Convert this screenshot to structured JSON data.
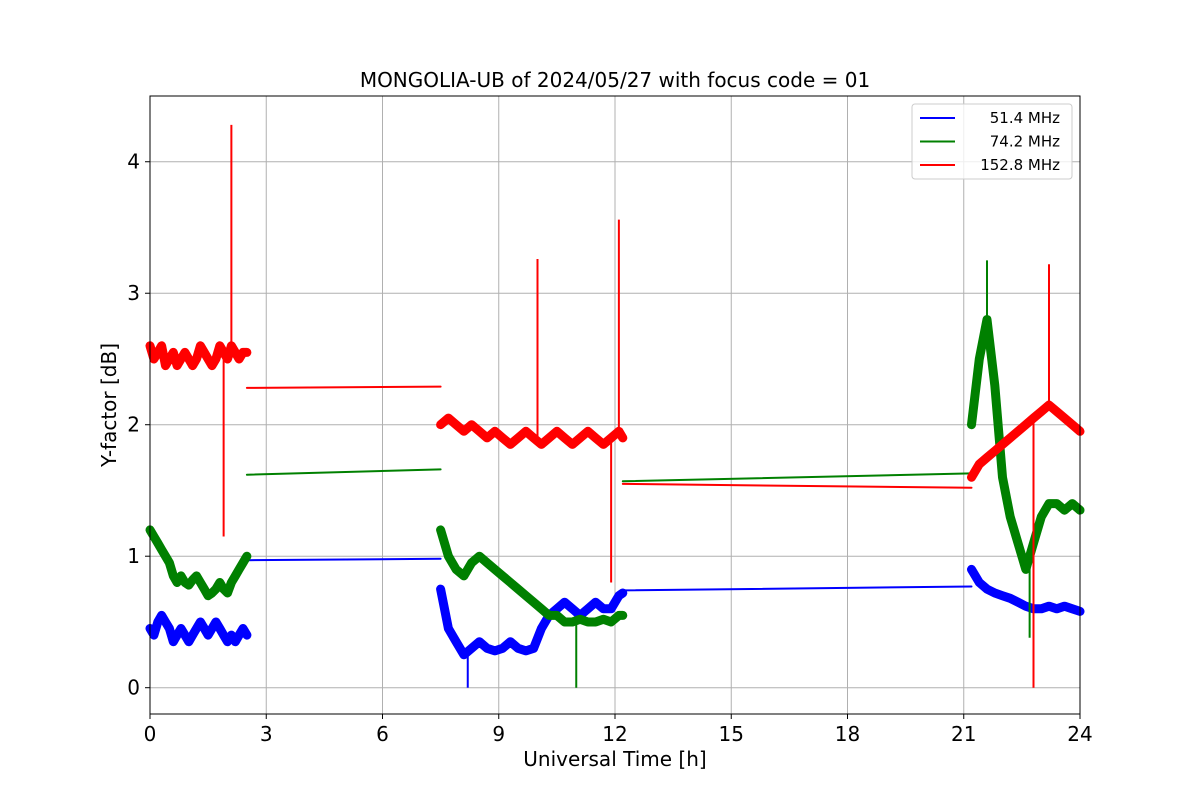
{
  "chart_data": {
    "type": "line",
    "title": "MONGOLIA-UB of 2024/05/27 with focus code = 01",
    "xlabel": "Universal Time [h]",
    "ylabel": "Y-factor [dB]",
    "xlim": [
      0,
      24
    ],
    "ylim": [
      -0.2,
      4.5
    ],
    "xticks": [
      0,
      3,
      6,
      9,
      12,
      15,
      18,
      21,
      24
    ],
    "yticks": [
      0,
      1,
      2,
      3,
      4
    ],
    "grid": true,
    "legend_position": "top-right",
    "series": [
      {
        "name": "51.4 MHz",
        "color": "#0000ff",
        "segments": [
          {
            "x": [
              0.0,
              0.1,
              0.2,
              0.3,
              0.4,
              0.5,
              0.6,
              0.7,
              0.8,
              0.9,
              1.0,
              1.1,
              1.2,
              1.3,
              1.4,
              1.5,
              1.6,
              1.7,
              1.8,
              1.9,
              2.0,
              2.1,
              2.2,
              2.3,
              2.4,
              2.5
            ],
            "y": [
              0.45,
              0.4,
              0.5,
              0.55,
              0.5,
              0.45,
              0.35,
              0.4,
              0.45,
              0.4,
              0.35,
              0.4,
              0.45,
              0.5,
              0.45,
              0.4,
              0.45,
              0.5,
              0.45,
              0.4,
              0.35,
              0.4,
              0.35,
              0.4,
              0.45,
              0.4
            ]
          },
          {
            "x": [
              2.5,
              7.5
            ],
            "y": [
              0.97,
              0.98
            ]
          },
          {
            "x": [
              7.5,
              7.7,
              7.9,
              8.1,
              8.3,
              8.5,
              8.7,
              8.9,
              9.1,
              9.3,
              9.5,
              9.7,
              9.9,
              10.1,
              10.3,
              10.5,
              10.7,
              10.9,
              11.1,
              11.3,
              11.5,
              11.7,
              11.9,
              12.1,
              12.2
            ],
            "y": [
              0.75,
              0.45,
              0.35,
              0.25,
              0.3,
              0.35,
              0.3,
              0.28,
              0.3,
              0.35,
              0.3,
              0.28,
              0.3,
              0.45,
              0.55,
              0.6,
              0.65,
              0.6,
              0.55,
              0.6,
              0.65,
              0.6,
              0.6,
              0.7,
              0.72
            ]
          },
          {
            "x": [
              12.2,
              21.2
            ],
            "y": [
              0.74,
              0.77
            ]
          },
          {
            "x": [
              21.2,
              21.4,
              21.6,
              21.8,
              22.0,
              22.2,
              22.4,
              22.6,
              22.8,
              23.0,
              23.2,
              23.4,
              23.6,
              23.8,
              24.0
            ],
            "y": [
              0.9,
              0.8,
              0.75,
              0.72,
              0.7,
              0.68,
              0.65,
              0.62,
              0.6,
              0.6,
              0.62,
              0.6,
              0.62,
              0.6,
              0.58
            ]
          }
        ]
      },
      {
        "name": "74.2 MHz",
        "color": "#008000",
        "segments": [
          {
            "x": [
              0.0,
              0.1,
              0.2,
              0.3,
              0.4,
              0.5,
              0.6,
              0.7,
              0.8,
              0.9,
              1.0,
              1.1,
              1.2,
              1.3,
              1.4,
              1.5,
              1.6,
              1.7,
              1.8,
              1.9,
              2.0,
              2.1,
              2.2,
              2.3,
              2.4,
              2.5
            ],
            "y": [
              1.2,
              1.15,
              1.1,
              1.05,
              1.0,
              0.95,
              0.85,
              0.8,
              0.85,
              0.8,
              0.78,
              0.82,
              0.85,
              0.8,
              0.75,
              0.7,
              0.72,
              0.75,
              0.8,
              0.75,
              0.72,
              0.8,
              0.85,
              0.9,
              0.95,
              1.0
            ]
          },
          {
            "x": [
              2.5,
              7.5
            ],
            "y": [
              1.62,
              1.66
            ]
          },
          {
            "x": [
              7.5,
              7.7,
              7.9,
              8.1,
              8.3,
              8.5,
              8.7,
              8.9,
              9.1,
              9.3,
              9.5,
              9.7,
              9.9,
              10.1,
              10.3,
              10.5,
              10.7,
              10.9,
              11.1,
              11.3,
              11.5,
              11.7,
              11.9,
              12.1,
              12.2
            ],
            "y": [
              1.2,
              1.0,
              0.9,
              0.85,
              0.95,
              1.0,
              0.95,
              0.9,
              0.85,
              0.8,
              0.75,
              0.7,
              0.65,
              0.6,
              0.55,
              0.55,
              0.5,
              0.5,
              0.52,
              0.5,
              0.5,
              0.52,
              0.5,
              0.55,
              0.55
            ]
          },
          {
            "x": [
              12.2,
              21.2
            ],
            "y": [
              1.57,
              1.63
            ]
          },
          {
            "x": [
              21.2,
              21.4,
              21.6,
              21.8,
              22.0,
              22.2,
              22.4,
              22.6,
              22.8,
              23.0,
              23.2,
              23.4,
              23.6,
              23.8,
              24.0
            ],
            "y": [
              2.0,
              2.5,
              2.8,
              2.3,
              1.6,
              1.3,
              1.1,
              0.9,
              1.1,
              1.3,
              1.4,
              1.4,
              1.35,
              1.4,
              1.35
            ]
          }
        ]
      },
      {
        "name": "152.8 MHz",
        "color": "#ff0000",
        "segments": [
          {
            "x": [
              0.0,
              0.1,
              0.2,
              0.3,
              0.4,
              0.5,
              0.6,
              0.7,
              0.8,
              0.9,
              1.0,
              1.1,
              1.2,
              1.3,
              1.4,
              1.5,
              1.6,
              1.7,
              1.8,
              1.9,
              2.0,
              2.1,
              2.2,
              2.3,
              2.4,
              2.5
            ],
            "y": [
              2.6,
              2.5,
              2.55,
              2.6,
              2.45,
              2.5,
              2.55,
              2.45,
              2.5,
              2.55,
              2.5,
              2.45,
              2.5,
              2.6,
              2.55,
              2.5,
              2.45,
              2.5,
              2.6,
              2.55,
              2.5,
              2.6,
              2.55,
              2.5,
              2.55,
              2.55
            ]
          },
          {
            "x": [
              2.5,
              7.5
            ],
            "y": [
              2.28,
              2.29
            ]
          },
          {
            "x": [
              7.5,
              7.7,
              7.9,
              8.1,
              8.3,
              8.5,
              8.7,
              8.9,
              9.1,
              9.3,
              9.5,
              9.7,
              9.9,
              10.1,
              10.3,
              10.5,
              10.7,
              10.9,
              11.1,
              11.3,
              11.5,
              11.7,
              11.9,
              12.1,
              12.2
            ],
            "y": [
              2.0,
              2.05,
              2.0,
              1.95,
              2.0,
              1.95,
              1.9,
              1.95,
              1.9,
              1.85,
              1.9,
              1.95,
              1.9,
              1.85,
              1.9,
              1.95,
              1.9,
              1.85,
              1.9,
              1.95,
              1.9,
              1.85,
              1.9,
              1.95,
              1.9
            ]
          },
          {
            "x": [
              12.2,
              21.2
            ],
            "y": [
              1.55,
              1.52
            ]
          },
          {
            "x": [
              21.2,
              21.4,
              21.6,
              21.8,
              22.0,
              22.2,
              22.4,
              22.6,
              22.8,
              23.0,
              23.2,
              23.4,
              23.6,
              23.8,
              24.0
            ],
            "y": [
              1.6,
              1.7,
              1.75,
              1.8,
              1.85,
              1.9,
              1.95,
              2.0,
              2.05,
              2.1,
              2.15,
              2.1,
              2.05,
              2.0,
              1.95
            ]
          }
        ]
      }
    ],
    "spikes": [
      {
        "series": "152.8 MHz",
        "x": 1.9,
        "y": 1.15
      },
      {
        "series": "152.8 MHz",
        "x": 2.1,
        "y": 4.28
      },
      {
        "series": "152.8 MHz",
        "x": 10.0,
        "y": 3.26
      },
      {
        "series": "152.8 MHz",
        "x": 12.1,
        "y": 3.56
      },
      {
        "series": "152.8 MHz",
        "x": 11.9,
        "y": 0.8
      },
      {
        "series": "152.8 MHz",
        "x": 22.8,
        "y": 0.0
      },
      {
        "series": "152.8 MHz",
        "x": 23.2,
        "y": 3.22
      },
      {
        "series": "74.2 MHz",
        "x": 21.6,
        "y": 3.25
      },
      {
        "series": "74.2 MHz",
        "x": 22.7,
        "y": 0.38
      },
      {
        "series": "51.4 MHz",
        "x": 8.2,
        "y": 0.0
      },
      {
        "series": "74.2 MHz",
        "x": 11.0,
        "y": 0.0
      }
    ]
  }
}
